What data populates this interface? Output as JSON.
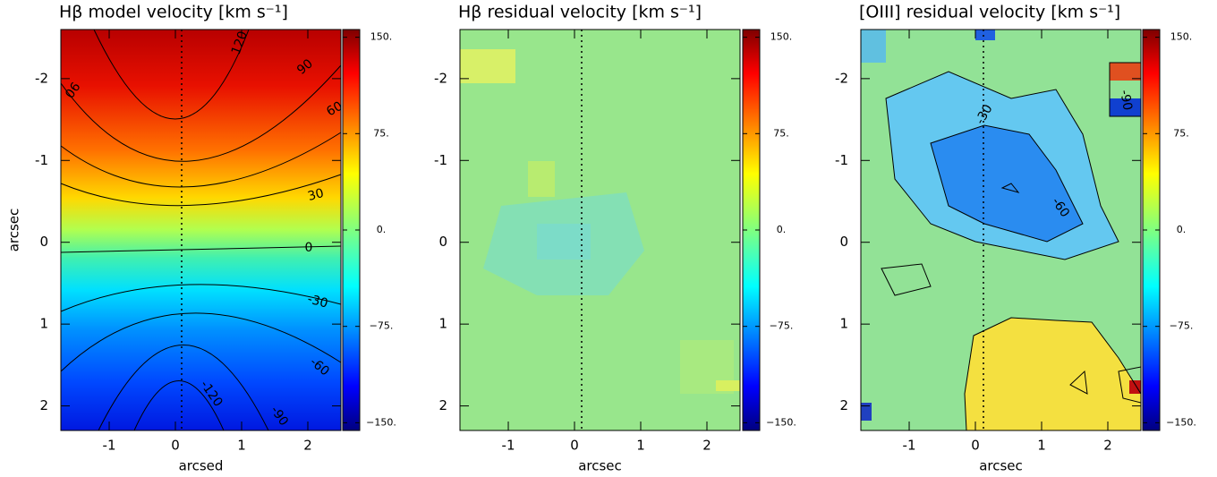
{
  "chart_data": [
    {
      "type": "heatmap",
      "title": "Hβ model velocity [km s⁻¹]",
      "x_label": "arcsed",
      "y_label": "arcsec",
      "xlim": [
        -1.73,
        2.5
      ],
      "ylim": [
        -2.6,
        2.3
      ],
      "y_inverted": true,
      "xticks": [
        -1,
        0,
        1,
        2
      ],
      "yticks": [
        -2,
        -1,
        0,
        1,
        2
      ],
      "colorbar": {
        "clim": [
          -156,
          156
        ],
        "ticks": [
          {
            "value": 150,
            "label": "150."
          },
          {
            "value": 75,
            "label": "75."
          },
          {
            "value": 0,
            "label": "0."
          },
          {
            "value": -75,
            "label": "−75."
          },
          {
            "value": -150,
            "label": "−150."
          }
        ]
      },
      "contour_labels": [
        120,
        90,
        90,
        60,
        30,
        0,
        -30,
        -60,
        -120,
        -90
      ]
    },
    {
      "type": "heatmap",
      "title": "Hβ residual velocity [km s⁻¹]",
      "x_label": "arcsec",
      "xlim": [
        -1.73,
        2.5
      ],
      "ylim": [
        -2.6,
        2.3
      ],
      "y_inverted": true,
      "xticks": [
        -1,
        0,
        1,
        2
      ],
      "yticks": [
        -2,
        -1,
        0,
        1,
        2
      ],
      "colorbar": {
        "clim": [
          -156,
          156
        ],
        "ticks": [
          {
            "value": 150,
            "label": "150."
          },
          {
            "value": 75,
            "label": "75."
          },
          {
            "value": 0,
            "label": "0."
          },
          {
            "value": -75,
            "label": "−75."
          },
          {
            "value": -150,
            "label": "−150."
          }
        ]
      }
    },
    {
      "type": "heatmap",
      "title": "[OIII] residual velocity [km s⁻¹]",
      "x_label": "arcsec",
      "xlim": [
        -1.73,
        2.5
      ],
      "ylim": [
        -2.6,
        2.3
      ],
      "y_inverted": true,
      "xticks": [
        -1,
        0,
        1,
        2
      ],
      "yticks": [
        -2,
        -1,
        0,
        1,
        2
      ],
      "colorbar": {
        "clim": [
          -156,
          156
        ],
        "ticks": [
          {
            "value": 150,
            "label": "150."
          },
          {
            "value": 75,
            "label": "75."
          },
          {
            "value": 0,
            "label": "0."
          },
          {
            "value": -75,
            "label": "−75."
          },
          {
            "value": -150,
            "label": "−150."
          }
        ]
      },
      "contour_labels": [
        -30,
        -60,
        -90
      ]
    }
  ]
}
